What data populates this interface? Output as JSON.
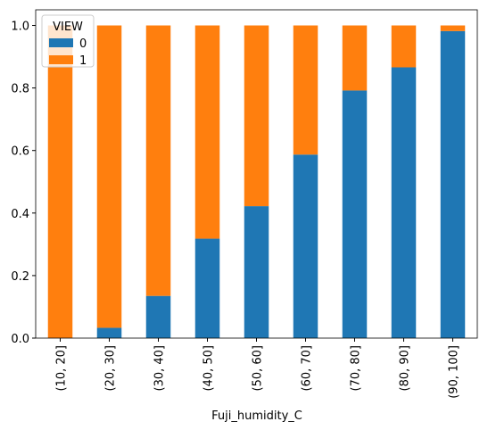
{
  "chart_data": {
    "type": "stacked_bar",
    "x_label": "Fuji_humidity_C",
    "legend_title": "VIEW",
    "legend_position": "upper left",
    "categories": [
      "(10, 20]",
      "(20, 30]",
      "(30, 40]",
      "(40, 50]",
      "(50, 60]",
      "(60, 70]",
      "(70, 80]",
      "(80, 90]",
      "(90, 100]"
    ],
    "series": [
      {
        "name": "0",
        "color": "#1f77b4",
        "values": [
          0,
          0.033,
          0.135,
          0.318,
          0.422,
          0.587,
          0.792,
          0.866,
          0.982
        ]
      },
      {
        "name": "1",
        "color": "#ff7f0e",
        "values": [
          1,
          0.967,
          0.865,
          0.682,
          0.578,
          0.413,
          0.208,
          0.134,
          0.018
        ]
      }
    ],
    "ylim": [
      0,
      1.05
    ],
    "yticks": [
      {
        "value": 0,
        "label": "0.0"
      },
      {
        "value": 0.2,
        "label": "0.2"
      },
      {
        "value": 0.4,
        "label": "0.4"
      },
      {
        "value": 0.6,
        "label": "0.6"
      },
      {
        "value": 0.8,
        "label": "0.8"
      },
      {
        "value": 1,
        "label": "1.0"
      }
    ]
  }
}
